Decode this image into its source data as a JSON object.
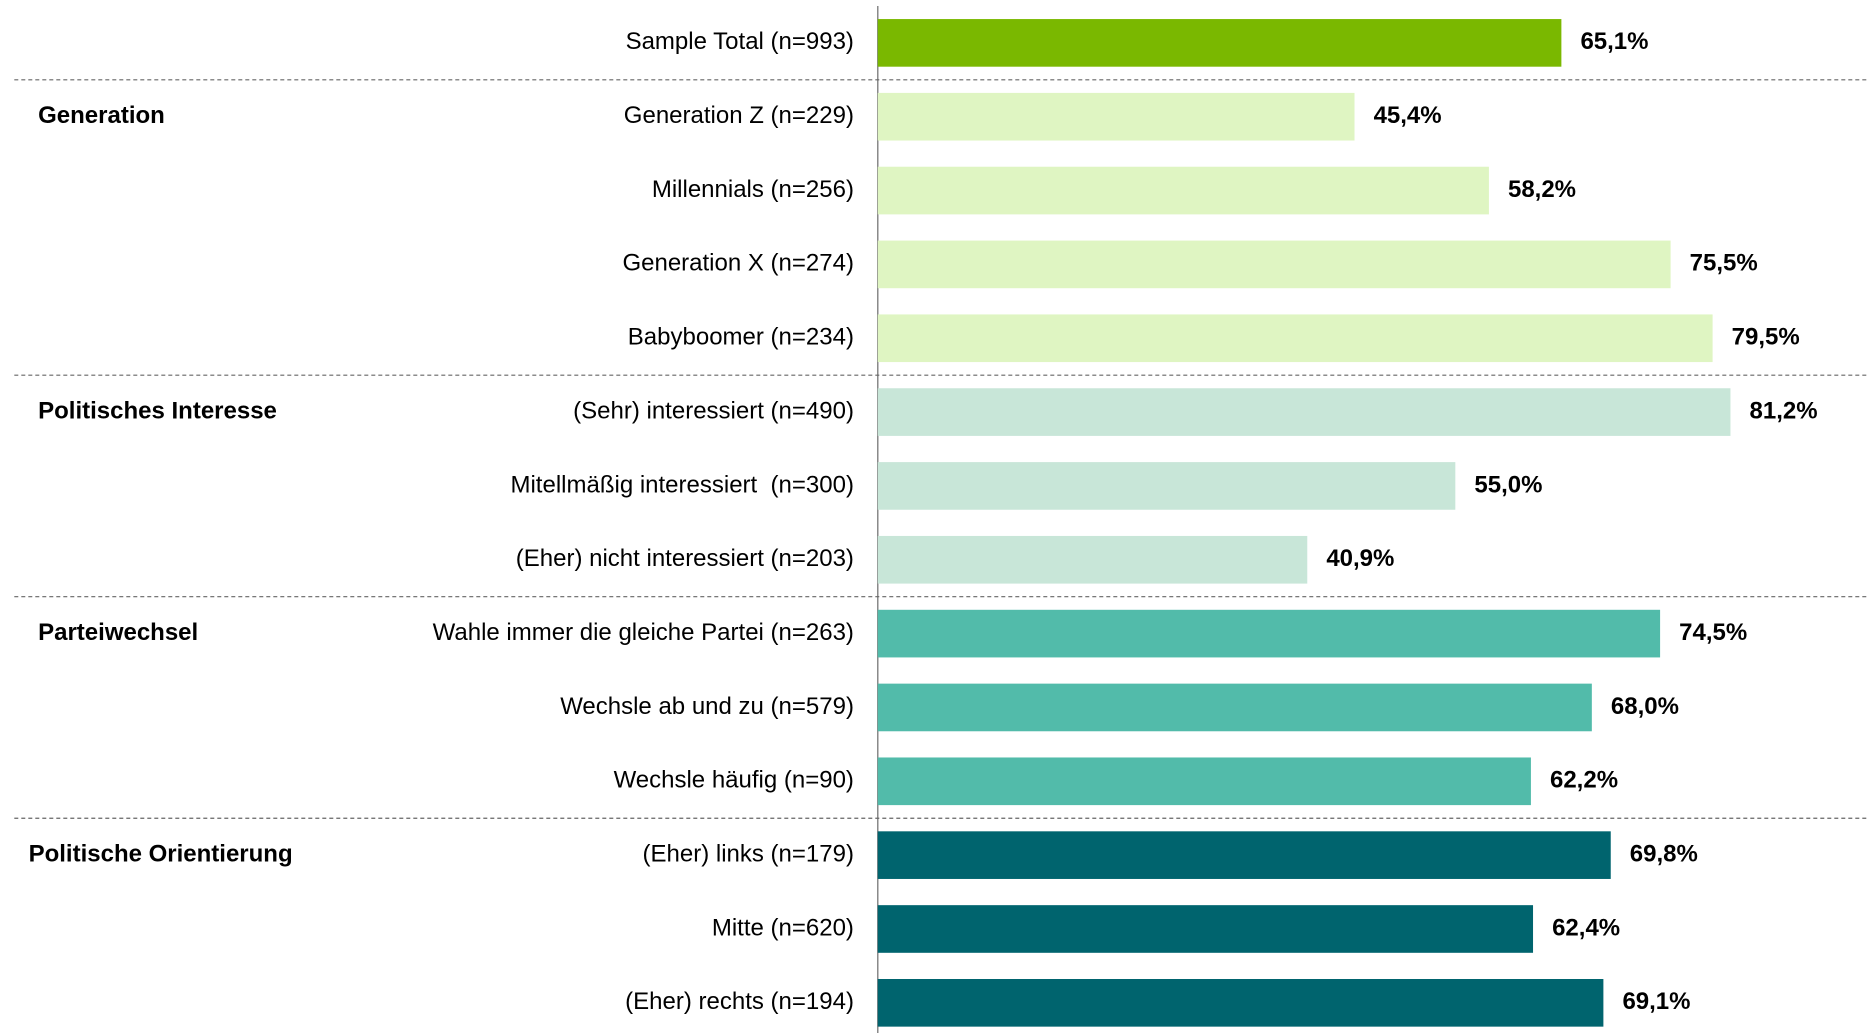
{
  "chart_data": {
    "type": "bar",
    "orientation": "horizontal",
    "total": {
      "category": "Sample Total (n=993)",
      "value": 65.1,
      "value_label": "65,1%",
      "color": "#7ab800"
    },
    "groups": [
      {
        "name": "Generation",
        "color": "#dff5c2",
        "categories": [
          "Generation Z (n=229)",
          "Millennials (n=256)",
          "Generation X (n=274)",
          "Babyboomer (n=234)"
        ],
        "values": [
          45.4,
          58.2,
          75.5,
          79.5
        ],
        "value_labels": [
          "45,4%",
          "58,2%",
          "75,5%",
          "79,5%"
        ]
      },
      {
        "name": "Politisches Interesse",
        "color": "#c8e6d8",
        "categories": [
          "(Sehr) interessiert (n=490)",
          "Mitellmäßig interessiert  (n=300)",
          "(Eher) nicht interessiert (n=203)"
        ],
        "values": [
          81.2,
          55.0,
          40.9
        ],
        "value_labels": [
          "81,2%",
          "55,0%",
          "40,9%"
        ]
      },
      {
        "name": "Parteiwechsel",
        "color": "#52bbaa",
        "categories": [
          "Wahle immer die gleiche Partei (n=263)",
          "Wechsle ab und zu (n=579)",
          "Wechsle häufig (n=90)"
        ],
        "values": [
          74.5,
          68.0,
          62.2
        ],
        "value_labels": [
          "74,5%",
          "68,0%",
          "62,2%"
        ]
      },
      {
        "name": "Politische Orientierung",
        "color": "#00646e",
        "categories": [
          "(Eher) links (n=179)",
          "Mitte (n=620)",
          "(Eher) rechts (n=194)"
        ],
        "values": [
          69.8,
          62.4,
          69.1
        ],
        "value_labels": [
          "69,8%",
          "62,4%",
          "69,1%"
        ]
      }
    ]
  }
}
